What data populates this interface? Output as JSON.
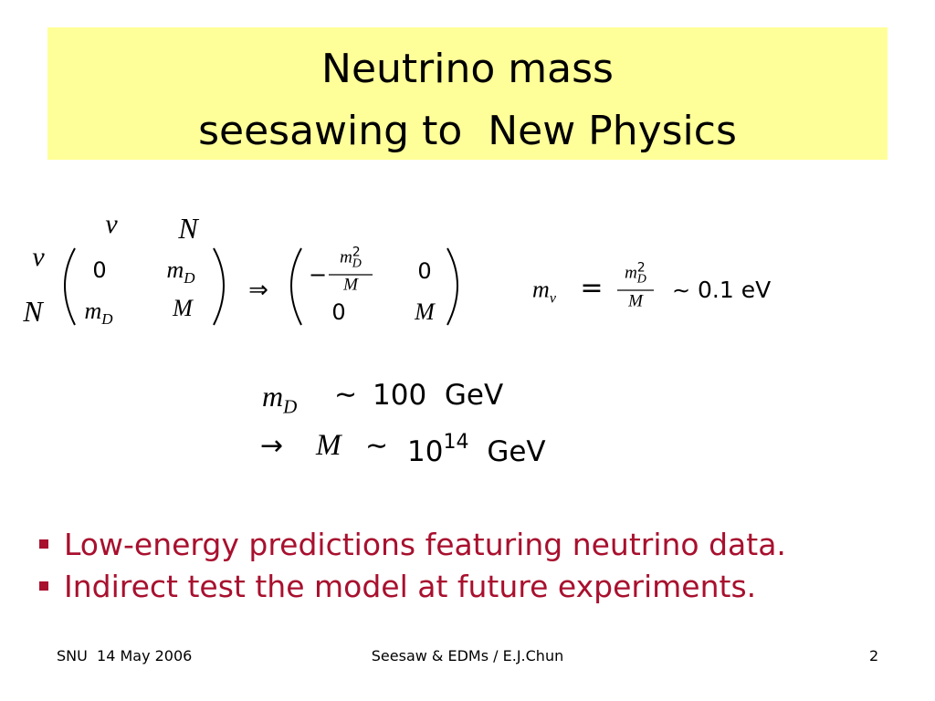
{
  "title": [
    "Neutrino mass",
    "seesawing to  New Physics"
  ],
  "matrix_equation": {
    "col_labels": [
      "ν",
      "N"
    ],
    "row_labels": [
      "ν",
      "N"
    ],
    "left": [
      [
        "0",
        {
          "base": "m",
          "sub": "D"
        }
      ],
      [
        {
          "base": "m",
          "sub": "D"
        },
        "M"
      ]
    ],
    "arrow": "⇒",
    "right": [
      [
        {
          "sign": "−",
          "num": {
            "base": "m",
            "sup": "2",
            "sub": "D"
          },
          "den": "M"
        },
        "0"
      ],
      [
        "0",
        "M"
      ]
    ]
  },
  "light_mass": {
    "lhs": {
      "base": "m",
      "sub": "ν"
    },
    "eq": "=",
    "num": {
      "base": "m",
      "sup": "2",
      "sub": "D"
    },
    "den": "M",
    "approx": "∼",
    "value": "0.1 eV"
  },
  "scale": [
    {
      "lhs": {
        "base": "m",
        "sub": "D"
      },
      "approx": "∼",
      "value": "100  GeV"
    },
    {
      "arrow": "→",
      "lhs": "M",
      "approx": "∼",
      "base": "10",
      "sup": "14",
      "unit": "GeV"
    }
  ],
  "bullets": [
    "Low-energy predictions featuring neutrino data.",
    "Indirect test the model at future experiments."
  ],
  "footer": {
    "left": "SNU  14 May 2006",
    "center": "Seesaw & EDMs / E.J.Chun",
    "right": "2"
  }
}
